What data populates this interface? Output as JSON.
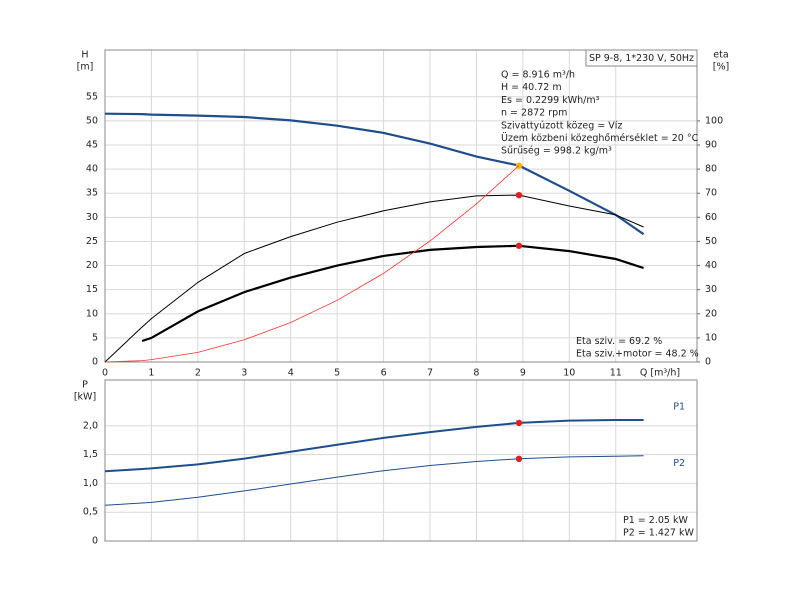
{
  "chart_data": [
    {
      "type": "line",
      "title": "SP 9-8, 1*230 V, 50Hz",
      "y_label": "H",
      "y_unit": "[m]",
      "y2_label": "eta",
      "y2_unit": "[%]",
      "x_label": "Q [m³/h]",
      "x": [
        0,
        0.8,
        1,
        2,
        3,
        4,
        5,
        6,
        7,
        8,
        8.916,
        10,
        11,
        11.6
      ],
      "xlim": [
        0,
        12.75
      ],
      "xticks": [
        0,
        1,
        2,
        3,
        4,
        5,
        6,
        7,
        8,
        9,
        10,
        11
      ],
      "ylim": [
        0,
        64.7
      ],
      "yticks": [
        0,
        5,
        10,
        15,
        20,
        25,
        30,
        35,
        40,
        45,
        50,
        55
      ],
      "y2lim": [
        0,
        129.4
      ],
      "y2ticks": [
        0,
        10,
        20,
        30,
        40,
        50,
        60,
        70,
        80,
        90,
        100
      ],
      "grid": true,
      "operating_point": 8.916,
      "series": [
        {
          "color": "#1f4e8c",
          "line_width": 2.2,
          "marker_color": "#f5b800",
          "values": [
            51.5,
            51.4,
            51.3,
            51.1,
            50.8,
            50.1,
            49.0,
            47.5,
            45.3,
            42.6,
            40.72,
            35.5,
            30.5,
            26.5
          ]
        },
        {
          "color": "#000000",
          "line_width": 1,
          "axis": "y2",
          "marker_color": "#e02020",
          "values": [
            0,
            14.5,
            18,
            33,
            45,
            52,
            58,
            62.7,
            66.4,
            68.9,
            69.2,
            64.7,
            61,
            56
          ]
        },
        {
          "color": "#000000",
          "line_width": 2.2,
          "axis": "y2",
          "marker_color": "#e02020",
          "values": [
            null,
            8.7,
            10,
            21,
            29,
            35,
            40,
            44,
            46.5,
            47.7,
            48.2,
            46,
            42.7,
            39
          ]
        },
        {
          "color": "#ff3030",
          "line_width": 0.8,
          "values": [
            0,
            0.3,
            0.5,
            2,
            4.6,
            8.2,
            12.8,
            18.4,
            25.1,
            32.8,
            40.72,
            null,
            null,
            null
          ]
        }
      ],
      "annotations": [
        "Q = 8.916 m³/h",
        "H = 40.72 m",
        "Es = 0.2299 kWh/m³",
        "n = 2872 rpm",
        "Szivattyúzott közeg = Víz",
        "Üzem közbeni közeghőmérséklet = 20 °C",
        "Sűrűség = 998.2 kg/m³"
      ],
      "notes": [
        "Eta sziv. = 69.2 %",
        "Eta sziv.+motor = 48.2 %"
      ]
    },
    {
      "type": "line",
      "y_label": "P",
      "y_unit": "[kW]",
      "x": [
        0,
        0.8,
        1,
        2,
        3,
        4,
        5,
        6,
        7,
        8,
        8.916,
        10,
        11,
        11.6
      ],
      "xlim": [
        0,
        12.75
      ],
      "xticks": [
        0,
        1,
        2,
        3,
        4,
        5,
        6,
        7,
        8,
        9,
        10,
        11
      ],
      "ylim": [
        0,
        2.795
      ],
      "yticks": [
        0,
        {
          "value": 0.5,
          "label": "0,5"
        },
        {
          "value": 1.0,
          "label": "1,0"
        },
        {
          "value": 1.5,
          "label": "1,5"
        },
        {
          "value": 2.0,
          "label": "2,0"
        }
      ],
      "grid": true,
      "operating_point": 8.916,
      "series": [
        {
          "name": "P1",
          "color": "#1f4e8c",
          "line_width": 2,
          "marker_color": "#e02020",
          "values": [
            1.21,
            1.25,
            1.26,
            1.33,
            1.43,
            1.55,
            1.67,
            1.79,
            1.89,
            1.98,
            2.05,
            2.09,
            2.1,
            2.1
          ]
        },
        {
          "name": "P2",
          "color": "#1f4e8c",
          "line_width": 1,
          "marker_color": "#e02020",
          "values": [
            0.62,
            0.66,
            0.67,
            0.76,
            0.87,
            0.99,
            1.11,
            1.22,
            1.31,
            1.38,
            1.427,
            1.46,
            1.47,
            1.48
          ]
        }
      ],
      "notes": [
        "P1 = 2.05 kW",
        "P2 = 1.427 kW"
      ]
    }
  ]
}
